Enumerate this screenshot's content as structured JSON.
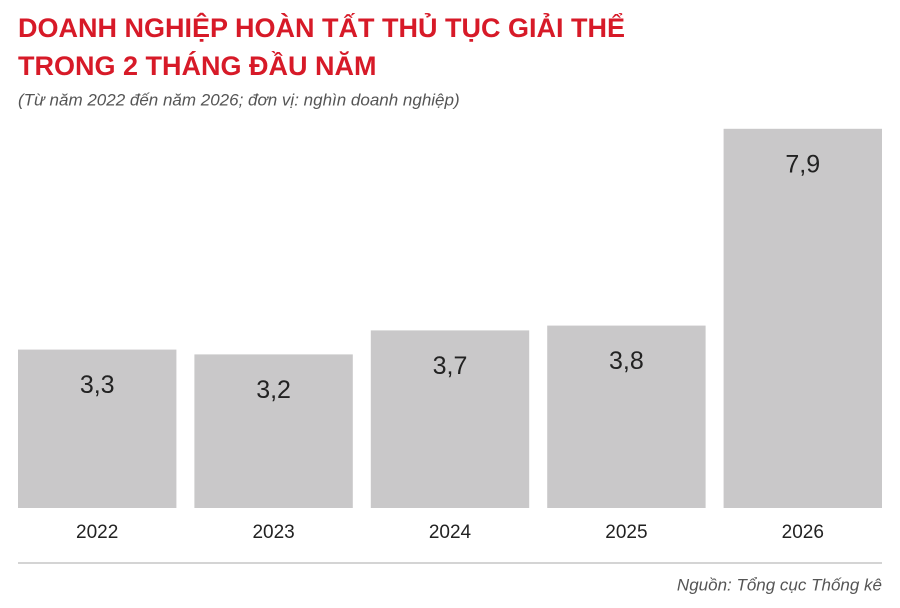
{
  "chart_data": {
    "type": "bar",
    "title": [
      "DOANH NGHIỆP HOÀN TẤT THỦ TỤC GIẢI THỂ",
      "TRONG 2 THÁNG ĐẦU NĂM"
    ],
    "subtitle": "(Từ năm 2022 đến năm 2026; đơn vị: nghìn doanh nghiệp)",
    "categories": [
      "2022",
      "2023",
      "2024",
      "2025",
      "2026"
    ],
    "values": [
      3.3,
      3.2,
      3.7,
      3.8,
      7.9
    ],
    "value_labels": [
      "3,3",
      "3,2",
      "3,7",
      "3,8",
      "7,9"
    ],
    "color": "#c9c8c9",
    "source": "Nguồn: Tổng cục Thống kê"
  }
}
